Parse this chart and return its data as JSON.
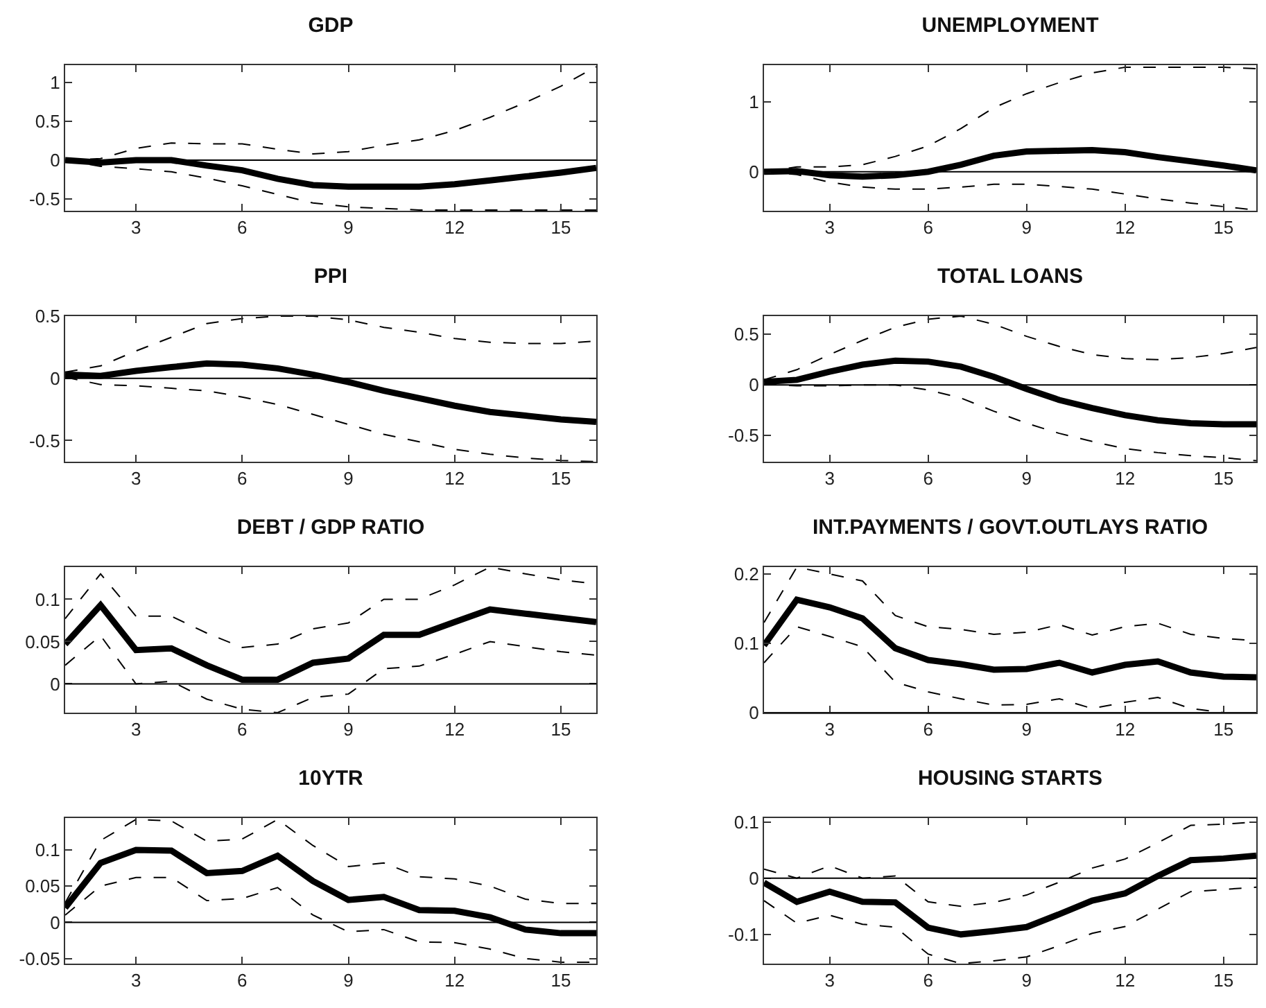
{
  "chart_data": [
    {
      "type": "line",
      "title": "GDP",
      "x": [
        1,
        2,
        3,
        4,
        5,
        6,
        7,
        8,
        9,
        10,
        11,
        12,
        13,
        14,
        15,
        16
      ],
      "xlim": [
        1,
        16
      ],
      "xticks": [
        3,
        6,
        9,
        12,
        15
      ],
      "ylim": [
        -0.65,
        1.22
      ],
      "yticks": [
        -0.5,
        0,
        0.5,
        1
      ],
      "ref_lines": [
        {
          "axis": "y",
          "value": 0,
          "color": "#000000"
        }
      ],
      "series": [
        {
          "color": "#000000",
          "line_style": "solid",
          "values": [
            0,
            -0.03,
            0,
            0,
            -0.07,
            -0.13,
            -0.24,
            -0.32,
            -0.34,
            -0.34,
            -0.34,
            -0.31,
            -0.26,
            -0.21,
            -0.16,
            -0.1
          ]
        },
        {
          "color": "#000000",
          "line_style": "dashed",
          "values": [
            0,
            0.02,
            0.15,
            0.22,
            0.21,
            0.21,
            0.14,
            0.08,
            0.11,
            0.19,
            0.26,
            0.38,
            0.55,
            0.74,
            0.95,
            1.2
          ]
        },
        {
          "color": "#000000",
          "line_style": "dashed",
          "values": [
            0,
            -0.08,
            -0.11,
            -0.15,
            -0.23,
            -0.33,
            -0.44,
            -0.55,
            -0.6,
            -0.62,
            -0.64,
            -0.64,
            -0.64,
            -0.64,
            -0.64,
            -0.64
          ]
        }
      ]
    },
    {
      "type": "line",
      "title": "UNEMPLOYMENT",
      "x": [
        1,
        2,
        3,
        4,
        5,
        6,
        7,
        8,
        9,
        10,
        11,
        12,
        13,
        14,
        15,
        16
      ],
      "xlim": [
        1,
        16
      ],
      "xticks": [
        3,
        6,
        9,
        12,
        15
      ],
      "ylim": [
        -0.56,
        1.53
      ],
      "yticks": [
        0,
        1
      ],
      "ref_lines": [
        {
          "axis": "y",
          "value": 0,
          "color": "#000000"
        }
      ],
      "series": [
        {
          "color": "#000000",
          "line_style": "solid",
          "values": [
            0,
            0.01,
            -0.05,
            -0.07,
            -0.05,
            0,
            0.1,
            0.23,
            0.29,
            0.3,
            0.31,
            0.28,
            0.21,
            0.15,
            0.09,
            0.02
          ]
        },
        {
          "color": "#000000",
          "line_style": "dashed",
          "values": [
            0,
            0.07,
            0.07,
            0.1,
            0.22,
            0.37,
            0.62,
            0.92,
            1.12,
            1.28,
            1.42,
            1.5,
            1.5,
            1.5,
            1.5,
            1.48
          ]
        },
        {
          "color": "#000000",
          "line_style": "dashed",
          "values": [
            0,
            -0.04,
            -0.15,
            -0.22,
            -0.25,
            -0.25,
            -0.22,
            -0.18,
            -0.18,
            -0.21,
            -0.25,
            -0.32,
            -0.39,
            -0.45,
            -0.5,
            -0.55
          ]
        }
      ]
    },
    {
      "type": "line",
      "title": "PPI",
      "x": [
        1,
        2,
        3,
        4,
        5,
        6,
        7,
        8,
        9,
        10,
        11,
        12,
        13,
        14,
        15,
        16
      ],
      "xlim": [
        1,
        16
      ],
      "xticks": [
        3,
        6,
        9,
        12,
        15
      ],
      "ylim": [
        -0.67,
        0.5
      ],
      "yticks": [
        -0.5,
        0,
        0.5
      ],
      "ref_lines": [
        {
          "axis": "y",
          "value": 0,
          "color": "#000000"
        }
      ],
      "series": [
        {
          "color": "#000000",
          "line_style": "solid",
          "values": [
            0.03,
            0.02,
            0.06,
            0.09,
            0.12,
            0.11,
            0.08,
            0.03,
            -0.03,
            -0.1,
            -0.16,
            -0.22,
            -0.27,
            -0.3,
            -0.33,
            -0.35
          ]
        },
        {
          "color": "#000000",
          "line_style": "dashed",
          "values": [
            0.05,
            0.1,
            0.22,
            0.33,
            0.44,
            0.48,
            0.5,
            0.5,
            0.47,
            0.41,
            0.37,
            0.32,
            0.29,
            0.28,
            0.28,
            0.3
          ]
        },
        {
          "color": "#000000",
          "line_style": "dashed",
          "values": [
            0.01,
            -0.05,
            -0.06,
            -0.08,
            -0.1,
            -0.15,
            -0.21,
            -0.29,
            -0.37,
            -0.45,
            -0.51,
            -0.57,
            -0.61,
            -0.64,
            -0.66,
            -0.67
          ]
        }
      ]
    },
    {
      "type": "line",
      "title": "TOTAL LOANS",
      "x": [
        1,
        2,
        3,
        4,
        5,
        6,
        7,
        8,
        9,
        10,
        11,
        12,
        13,
        14,
        15,
        16
      ],
      "xlim": [
        1,
        16
      ],
      "xticks": [
        3,
        6,
        9,
        12,
        15
      ],
      "ylim": [
        -0.76,
        0.68
      ],
      "yticks": [
        -0.5,
        0,
        0.5
      ],
      "ref_lines": [
        {
          "axis": "y",
          "value": 0,
          "color": "#000000"
        }
      ],
      "series": [
        {
          "color": "#000000",
          "line_style": "solid",
          "values": [
            0.03,
            0.05,
            0.13,
            0.2,
            0.24,
            0.23,
            0.18,
            0.08,
            -0.04,
            -0.15,
            -0.23,
            -0.3,
            -0.35,
            -0.38,
            -0.39,
            -0.39
          ]
        },
        {
          "color": "#000000",
          "line_style": "dashed",
          "values": [
            0.05,
            0.15,
            0.3,
            0.44,
            0.57,
            0.65,
            0.68,
            0.6,
            0.48,
            0.38,
            0.3,
            0.26,
            0.25,
            0.27,
            0.31,
            0.37
          ]
        },
        {
          "color": "#000000",
          "line_style": "dashed",
          "values": [
            0.01,
            -0.01,
            -0.01,
            0,
            0,
            -0.05,
            -0.13,
            -0.26,
            -0.38,
            -0.48,
            -0.56,
            -0.63,
            -0.67,
            -0.7,
            -0.72,
            -0.75
          ]
        }
      ]
    },
    {
      "type": "line",
      "title": "DEBT / GDP RATIO",
      "x": [
        1,
        2,
        3,
        4,
        5,
        6,
        7,
        8,
        9,
        10,
        11,
        12,
        13,
        14,
        15,
        16
      ],
      "xlim": [
        1,
        16
      ],
      "xticks": [
        3,
        6,
        9,
        12,
        15
      ],
      "ylim": [
        -0.034,
        0.138
      ],
      "yticks": [
        0,
        0.05,
        0.1
      ],
      "ref_lines": [
        {
          "axis": "y",
          "value": 0,
          "color": "#000000"
        }
      ],
      "series": [
        {
          "color": "#000000",
          "line_style": "solid",
          "values": [
            0.047,
            0.093,
            0.04,
            0.042,
            0.022,
            0.005,
            0.005,
            0.025,
            0.03,
            0.058,
            0.058,
            0.073,
            0.088,
            0.083,
            0.078,
            0.073
          ]
        },
        {
          "color": "#000000",
          "line_style": "dashed",
          "values": [
            0.077,
            0.13,
            0.08,
            0.08,
            0.06,
            0.043,
            0.047,
            0.065,
            0.072,
            0.1,
            0.1,
            0.117,
            0.138,
            0.13,
            0.123,
            0.118
          ]
        },
        {
          "color": "#000000",
          "line_style": "dashed",
          "values": [
            0.022,
            0.057,
            0,
            0.003,
            -0.018,
            -0.03,
            -0.034,
            -0.016,
            -0.012,
            0.018,
            0.021,
            0.035,
            0.05,
            0.044,
            0.038,
            0.034
          ]
        }
      ]
    },
    {
      "type": "line",
      "title": "INT.PAYMENTS / GOVT.OUTLAYS RATIO",
      "x": [
        1,
        2,
        3,
        4,
        5,
        6,
        7,
        8,
        9,
        10,
        11,
        12,
        13,
        14,
        15,
        16
      ],
      "xlim": [
        1,
        16
      ],
      "xticks": [
        3,
        6,
        9,
        12,
        15
      ],
      "ylim": [
        0,
        0.21
      ],
      "yticks": [
        0,
        0.1,
        0.2
      ],
      "ref_lines": [
        {
          "axis": "y",
          "value": 0,
          "color": "#000000"
        }
      ],
      "series": [
        {
          "color": "#000000",
          "line_style": "solid",
          "values": [
            0.097,
            0.163,
            0.152,
            0.136,
            0.093,
            0.076,
            0.07,
            0.062,
            0.063,
            0.072,
            0.058,
            0.069,
            0.074,
            0.058,
            0.052,
            0.051
          ]
        },
        {
          "color": "#000000",
          "line_style": "dashed",
          "values": [
            0.13,
            0.21,
            0.2,
            0.19,
            0.14,
            0.124,
            0.12,
            0.113,
            0.116,
            0.127,
            0.112,
            0.124,
            0.129,
            0.113,
            0.107,
            0.104
          ]
        },
        {
          "color": "#000000",
          "line_style": "dashed",
          "values": [
            0.072,
            0.124,
            0.11,
            0.095,
            0.044,
            0.03,
            0.02,
            0.011,
            0.012,
            0.02,
            0.006,
            0.015,
            0.022,
            0.006,
            0,
            0
          ]
        }
      ]
    },
    {
      "type": "line",
      "title": "10YTR",
      "x": [
        1,
        2,
        3,
        4,
        5,
        6,
        7,
        8,
        9,
        10,
        11,
        12,
        13,
        14,
        15,
        16
      ],
      "xlim": [
        1,
        16
      ],
      "xticks": [
        3,
        6,
        9,
        12,
        15
      ],
      "ylim": [
        -0.057,
        0.144
      ],
      "yticks": [
        -0.05,
        0,
        0.05,
        0.1
      ],
      "ref_lines": [
        {
          "axis": "y",
          "value": 0,
          "color": "#000000"
        }
      ],
      "series": [
        {
          "color": "#000000",
          "line_style": "solid",
          "values": [
            0.02,
            0.082,
            0.1,
            0.099,
            0.068,
            0.071,
            0.092,
            0.057,
            0.031,
            0.035,
            0.017,
            0.016,
            0.007,
            -0.01,
            -0.015,
            -0.015
          ]
        },
        {
          "color": "#000000",
          "line_style": "dashed",
          "values": [
            0.027,
            0.113,
            0.142,
            0.14,
            0.112,
            0.115,
            0.142,
            0.106,
            0.077,
            0.082,
            0.063,
            0.06,
            0.05,
            0.032,
            0.026,
            0.026
          ]
        },
        {
          "color": "#000000",
          "line_style": "dashed",
          "values": [
            0.01,
            0.05,
            0.062,
            0.062,
            0.03,
            0.033,
            0.048,
            0.01,
            -0.013,
            -0.01,
            -0.027,
            -0.028,
            -0.037,
            -0.05,
            -0.055,
            -0.055
          ]
        }
      ]
    },
    {
      "type": "line",
      "title": "HOUSING STARTS",
      "x": [
        1,
        2,
        3,
        4,
        5,
        6,
        7,
        8,
        9,
        10,
        11,
        12,
        13,
        14,
        15,
        16
      ],
      "xlim": [
        1,
        16
      ],
      "xticks": [
        3,
        6,
        9,
        12,
        15
      ],
      "ylim": [
        -0.152,
        0.107
      ],
      "yticks": [
        -0.1,
        0,
        0.1
      ],
      "ref_lines": [
        {
          "axis": "y",
          "value": 0,
          "color": "#000000"
        }
      ],
      "series": [
        {
          "color": "#000000",
          "line_style": "solid",
          "values": [
            -0.008,
            -0.042,
            -0.024,
            -0.042,
            -0.043,
            -0.088,
            -0.1,
            -0.094,
            -0.087,
            -0.064,
            -0.04,
            -0.027,
            0.004,
            0.032,
            0.035,
            0.04
          ]
        },
        {
          "color": "#000000",
          "line_style": "dashed",
          "values": [
            0.016,
            0,
            0.022,
            0,
            0.004,
            -0.042,
            -0.05,
            -0.043,
            -0.03,
            -0.007,
            0.018,
            0.034,
            0.063,
            0.094,
            0.096,
            0.1
          ]
        },
        {
          "color": "#000000",
          "line_style": "dashed",
          "values": [
            -0.04,
            -0.08,
            -0.066,
            -0.082,
            -0.087,
            -0.135,
            -0.152,
            -0.147,
            -0.14,
            -0.12,
            -0.098,
            -0.086,
            -0.055,
            -0.024,
            -0.02,
            -0.016
          ]
        }
      ]
    }
  ]
}
